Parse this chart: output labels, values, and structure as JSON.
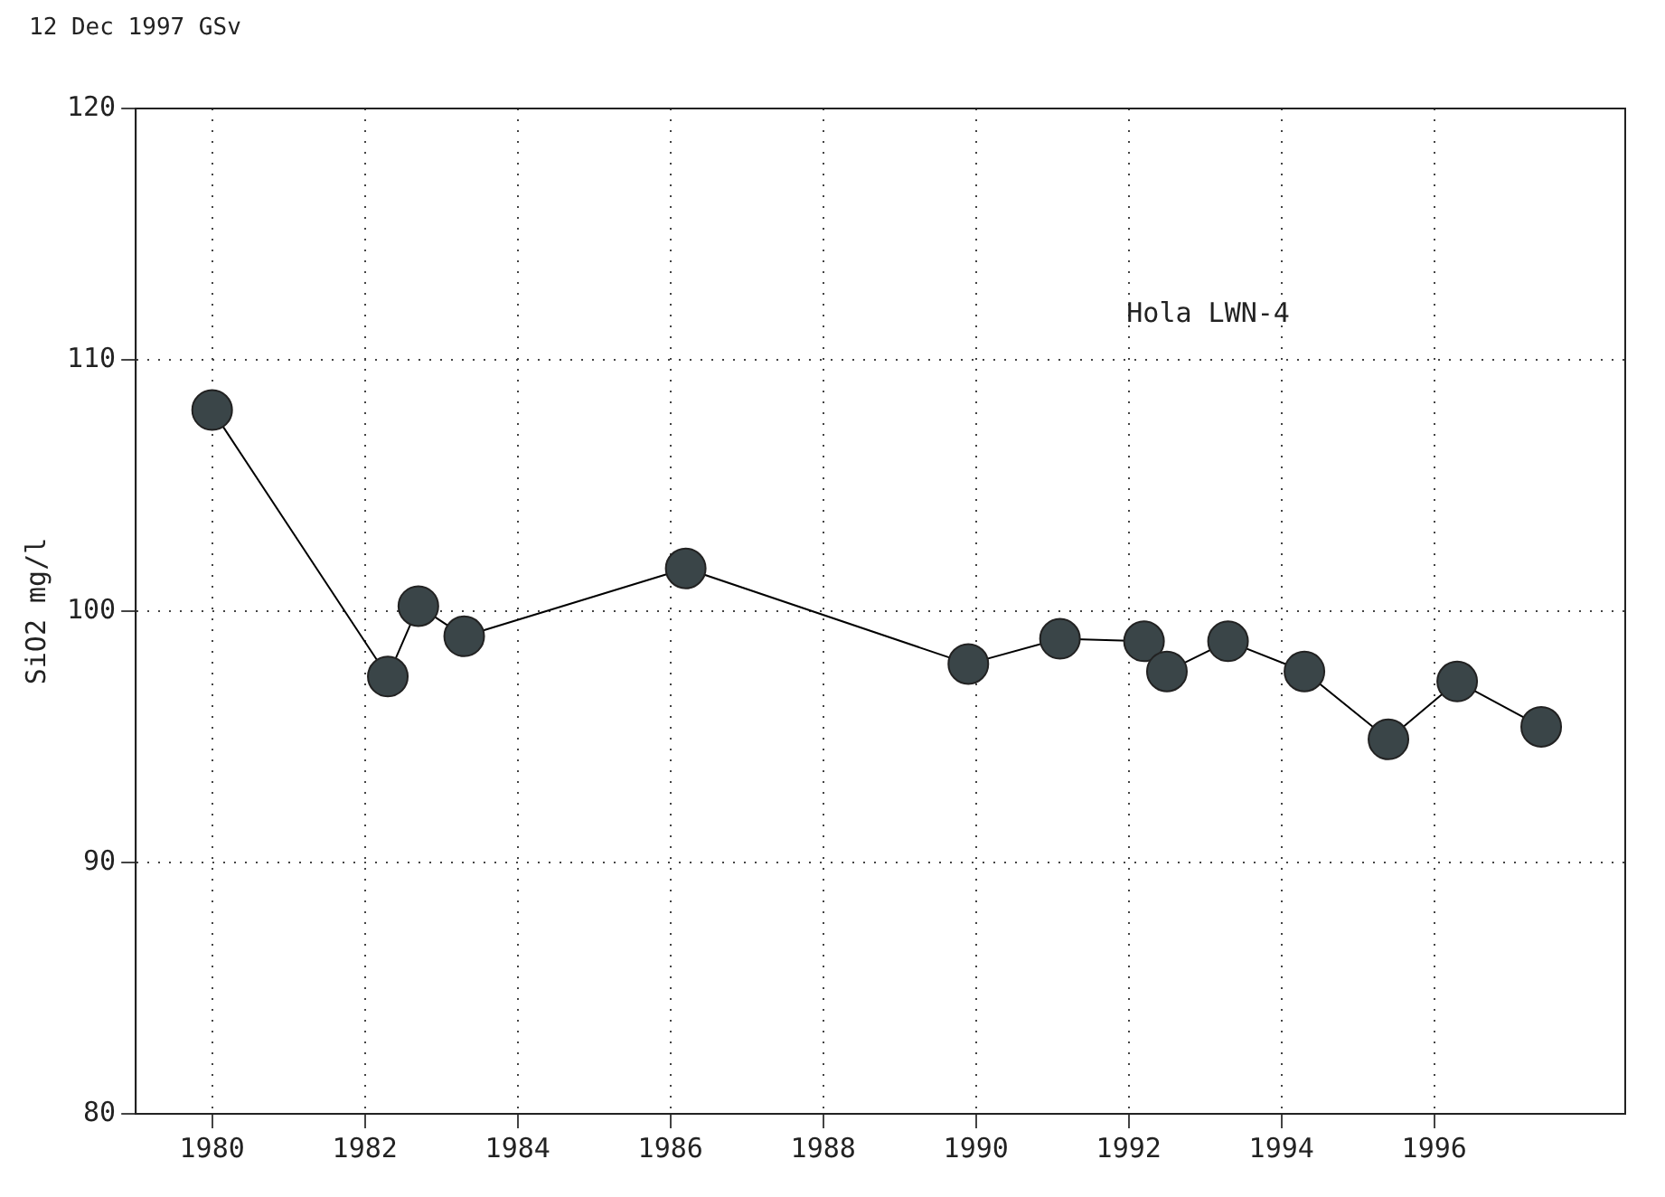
{
  "chart_data": {
    "type": "line",
    "ylabel": "SiO2 mg/l",
    "annotations": [
      "12 Dec 1997 GSv",
      "Hola LWN-4"
    ],
    "x": [
      1980.0,
      1982.3,
      1982.7,
      1983.3,
      1986.2,
      1989.9,
      1991.1,
      1992.2,
      1992.5,
      1993.3,
      1994.3,
      1995.4,
      1996.3,
      1997.4
    ],
    "series": [
      {
        "color": "#3a4548",
        "values": [
          108,
          97.4,
          100.2,
          99.0,
          101.7,
          97.9,
          98.9,
          98.8,
          97.6,
          98.8,
          97.6,
          94.9,
          97.2,
          95.4
        ]
      }
    ],
    "xlim": [
      1979,
      1998.5
    ],
    "xticks": [
      1980,
      1982,
      1984,
      1986,
      1988,
      1990,
      1992,
      1994,
      1996
    ],
    "ylim": [
      80,
      120
    ],
    "yticks": [
      80,
      90,
      100,
      110,
      120
    ],
    "grid": true,
    "marker": "circle",
    "line_style": "solid",
    "legend": false
  }
}
